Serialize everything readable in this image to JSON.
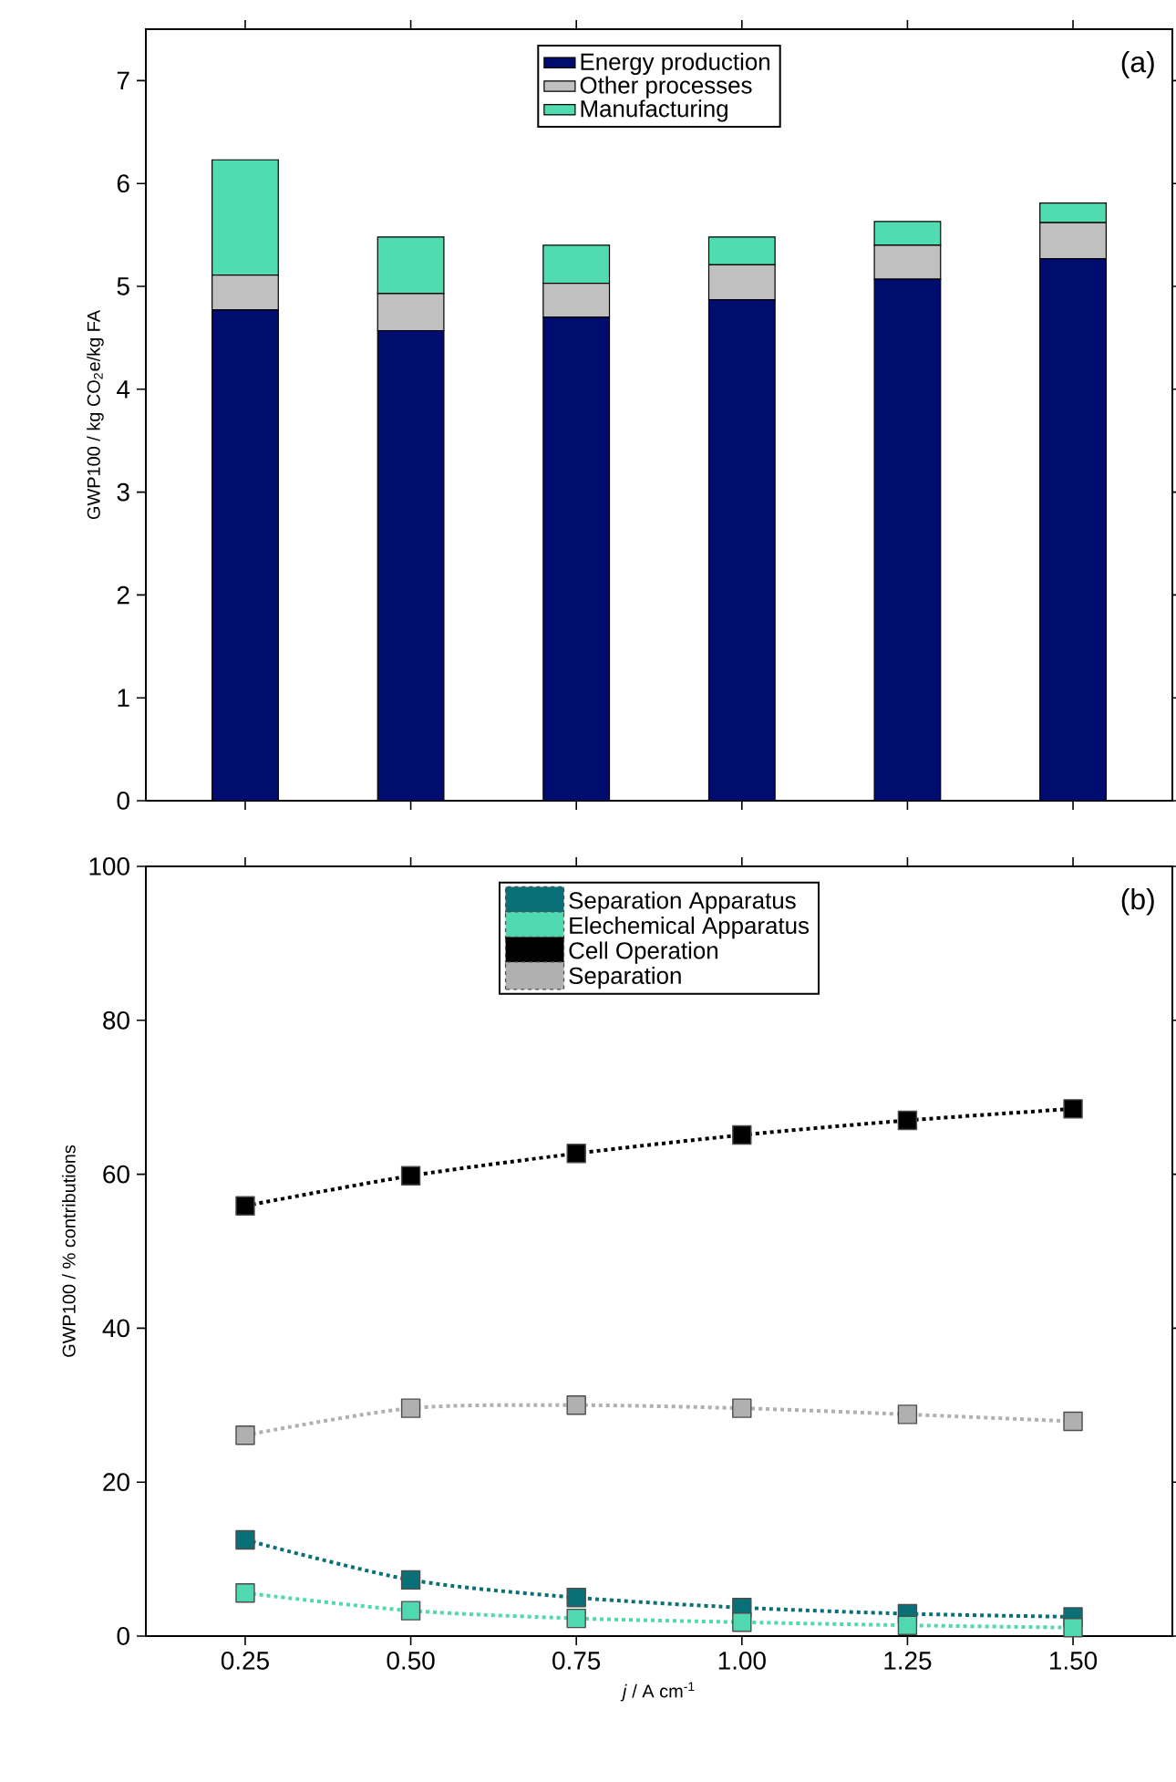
{
  "chart_data": [
    {
      "type": "bar",
      "stacked": true,
      "ylabel": "GWP100  /  kg CO$_{2}$e/kg FA",
      "x": [
        0.25,
        0.5,
        0.75,
        1.0,
        1.25,
        1.5
      ],
      "xlim": [
        0.1,
        1.65
      ],
      "xticks": [
        0.25,
        0.5,
        0.75,
        1.0,
        1.25,
        1.5
      ],
      "ylim": [
        0,
        7.5
      ],
      "yticks": [
        0,
        1,
        2,
        3,
        4,
        5,
        6,
        7
      ],
      "tick_labels": "y",
      "legend": "top",
      "annotations": [
        "(a)"
      ],
      "series": [
        {
          "name": "Energy production",
          "color": "#000c6e",
          "values": [
            4.77,
            4.57,
            4.7,
            4.87,
            5.07,
            5.27
          ]
        },
        {
          "name": "Other processes",
          "color": "#c0c0c0",
          "values": [
            0.34,
            0.36,
            0.33,
            0.34,
            0.33,
            0.35
          ]
        },
        {
          "name": "Manufacturing",
          "color": "#50dcb0",
          "values": [
            1.12,
            0.55,
            0.37,
            0.27,
            0.23,
            0.19
          ]
        }
      ]
    },
    {
      "type": "line",
      "marker": "square",
      "line_style": "dotted",
      "xlabel": "*j* / A cm$^{-1}$",
      "ylabel": "GWP100 / % contributions",
      "x": [
        0.25,
        0.5,
        0.75,
        1.0,
        1.25,
        1.5
      ],
      "xlim": [
        0.1,
        1.65
      ],
      "xticks": [
        {
          "value": 0.25,
          "label": "0.25"
        },
        {
          "value": 0.5,
          "label": "0.50"
        },
        {
          "value": 0.75,
          "label": "0.75"
        },
        {
          "value": 1.0,
          "label": "1.00"
        },
        {
          "value": 1.25,
          "label": "1.25"
        },
        {
          "value": 1.5,
          "label": "1.50"
        }
      ],
      "ylim": [
        0,
        100
      ],
      "yticks": [
        0,
        20,
        40,
        60,
        80,
        100
      ],
      "legend": "top",
      "annotations": [
        "(b)"
      ],
      "series": [
        {
          "name": "Separation Apparatus",
          "color": "#0a7078",
          "values": [
            12.5,
            7.3,
            5.0,
            3.7,
            2.9,
            2.5
          ]
        },
        {
          "name": "Elechemical Apparatus",
          "color": "#50d8b0",
          "values": [
            5.6,
            3.3,
            2.3,
            1.8,
            1.4,
            1.1
          ]
        },
        {
          "name": "Cell Operation",
          "color": "#000000",
          "values": [
            55.9,
            59.8,
            62.7,
            65.1,
            67.0,
            68.5
          ]
        },
        {
          "name": "Separation",
          "color": "#b0b0b0",
          "values": [
            26.1,
            29.6,
            30.0,
            29.6,
            28.8,
            27.9
          ]
        }
      ]
    }
  ]
}
